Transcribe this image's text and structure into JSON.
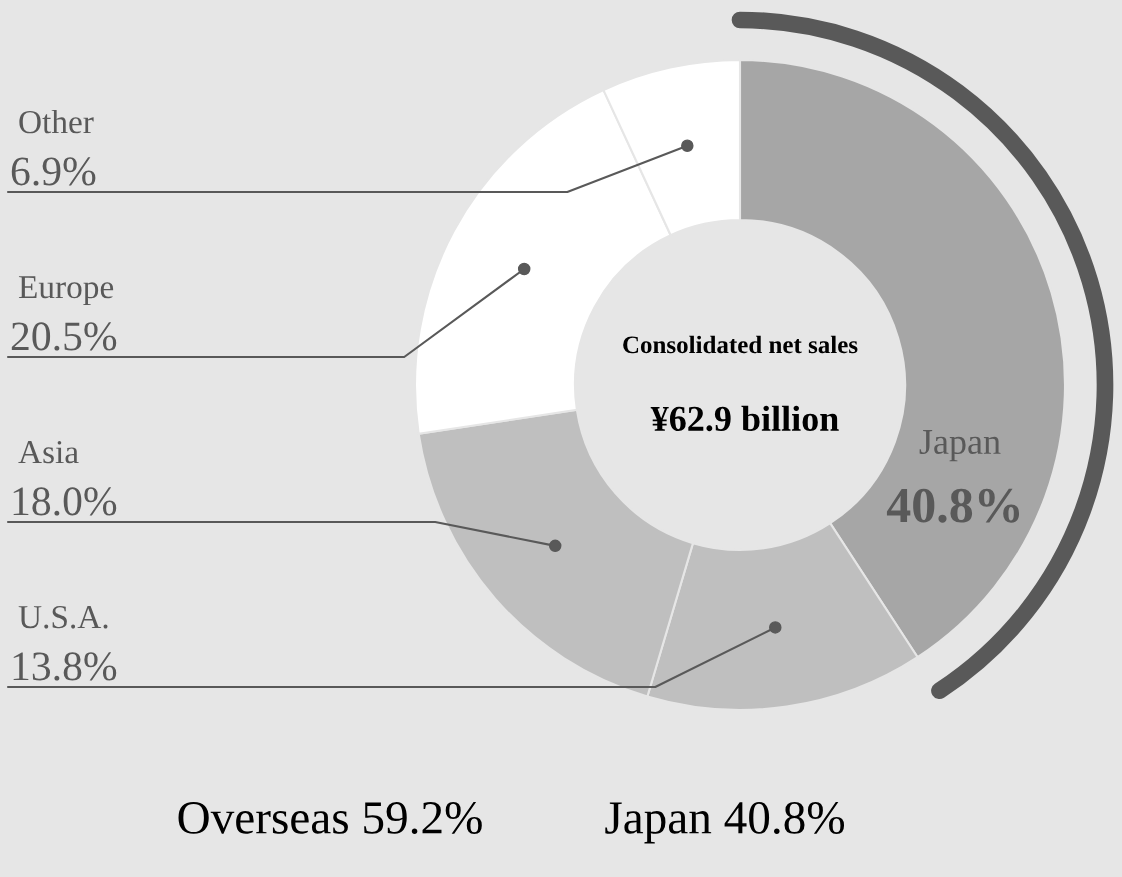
{
  "chart_data": {
    "type": "donut",
    "categories": [
      "Japan",
      "U.S.A.",
      "Asia",
      "Europe",
      "Other"
    ],
    "values": [
      40.8,
      13.8,
      18.0,
      20.5,
      6.9
    ],
    "colors": [
      "#a6a6a6",
      "#bfbfbf",
      "#bfbfbf",
      "#ffffff",
      "#ffffff"
    ],
    "value_labels": [
      "40.8%",
      "13.8%",
      "18.0%",
      "20.5%",
      "6.9%"
    ],
    "annotations": [
      "Consolidated net sales",
      "¥62.9 billion",
      "Overseas 59.2%",
      "Japan 40.8%"
    ]
  }
}
